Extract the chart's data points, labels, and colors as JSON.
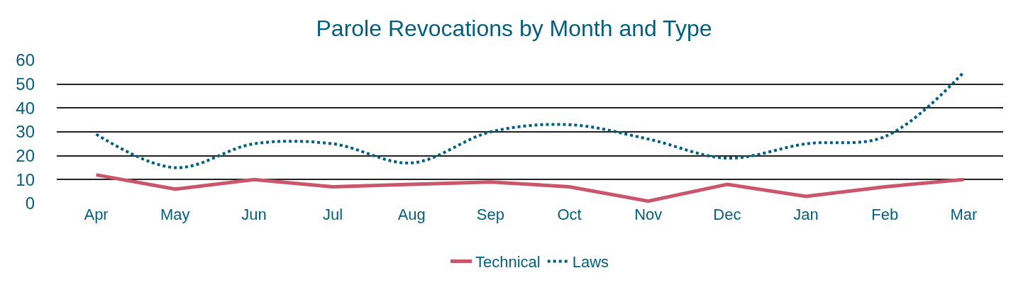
{
  "chart_data": {
    "type": "line",
    "title": "Parole Revocations by Month and Type",
    "categories": [
      "Apr",
      "May",
      "Jun",
      "Jul",
      "Aug",
      "Sep",
      "Oct",
      "Nov",
      "Dec",
      "Jan",
      "Feb",
      "Mar"
    ],
    "series": [
      {
        "name": "Technical",
        "color": "#c9566b",
        "line_style": "solid",
        "values": [
          12,
          6,
          10,
          7,
          8,
          9,
          7,
          1,
          8,
          3,
          7,
          10
        ]
      },
      {
        "name": "Laws",
        "color": "#005f7f",
        "line_style": "dotted",
        "values": [
          29,
          15,
          25,
          25,
          17,
          30,
          33,
          27,
          19,
          25,
          28,
          55
        ]
      }
    ],
    "ylim": [
      0,
      60
    ],
    "yticks": [
      0,
      10,
      20,
      30,
      40,
      50,
      60
    ],
    "grid": "y",
    "legend": "bottom",
    "marker": "none"
  }
}
